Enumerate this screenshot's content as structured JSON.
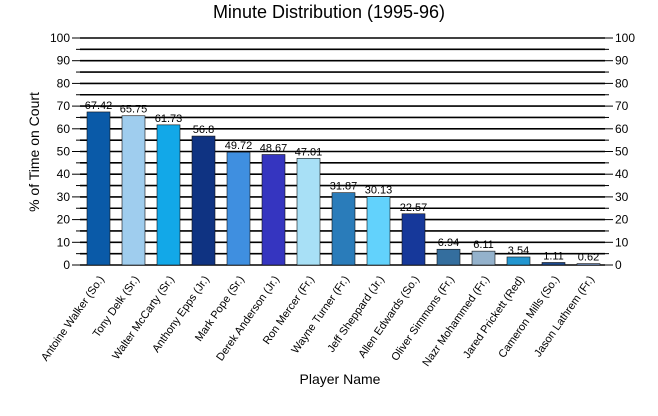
{
  "chart_data": {
    "type": "bar",
    "title": "Minute Distribution (1995-96)",
    "xlabel": "Player Name",
    "ylabel": "% of Time on Court",
    "ylim": [
      0,
      100
    ],
    "yticks": [
      "0",
      "10",
      "20",
      "30",
      "40",
      "50",
      "60",
      "70",
      "80",
      "90",
      "100"
    ],
    "grid": "horizontal",
    "categories": [
      "Antoine Walker (So.)",
      "Tony Delk (Sr.)",
      "Walter McCarty (Sr.)",
      "Anthony Epps (Jr.)",
      "Mark Pope (Sr.)",
      "Derek Anderson (Jr.)",
      "Ron Mercer (Fr.)",
      "Wayne Turner (Fr.)",
      "Jeff Sheppard (Jr.)",
      "Allen Edwards (So.)",
      "Oliver Simmons (Fr.)",
      "Nazr Mohammed (Fr.)",
      "Jared Prickett (Red)",
      "Cameron Mills (So.)",
      "Jason Lathrem (Fr.)"
    ],
    "values": [
      67.42,
      65.75,
      61.73,
      56.8,
      49.72,
      48.67,
      47.01,
      31.87,
      30.13,
      22.57,
      6.94,
      6.11,
      3.54,
      1.11,
      0.62
    ],
    "labels": [
      "67.42",
      "65.75",
      "61.73",
      "56.8",
      "49.72",
      "48.67",
      "47.01",
      "31.87",
      "30.13",
      "22.57",
      "6.94",
      "6.11",
      "3.54",
      "1.11",
      "0.62"
    ],
    "colors": [
      "#0a5aa8",
      "#9fcdee",
      "#12a8e8",
      "#0f3382",
      "#3f8fe0",
      "#3535c0",
      "#a8e0f6",
      "#2a7cba",
      "#62d2fc",
      "#16389a",
      "#346e9e",
      "#94b2cc",
      "#2296d0",
      "#1d4a8e",
      "#7fa0d4"
    ]
  }
}
